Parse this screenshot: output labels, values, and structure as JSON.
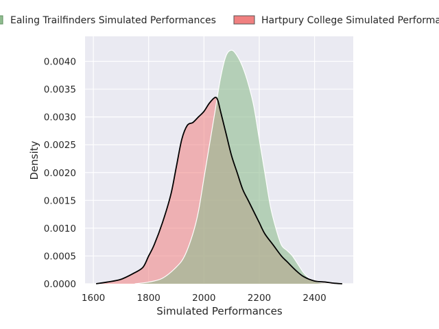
{
  "chart_data": {
    "type": "area",
    "title": "",
    "xlabel": "Simulated Performances",
    "ylabel": "Density",
    "xlim": [
      1570,
      2540
    ],
    "ylim": [
      0,
      0.00445
    ],
    "xticks": [
      1600,
      1800,
      2000,
      2200,
      2400
    ],
    "xtick_labels": [
      "1600",
      "1800",
      "2000",
      "2200",
      "2400"
    ],
    "yticks": [
      0,
      0.0005,
      0.001,
      0.0015,
      0.002,
      0.0025,
      0.003,
      0.0035,
      0.004
    ],
    "ytick_labels": [
      "0.0000",
      "0.0005",
      "0.0010",
      "0.0015",
      "0.0020",
      "0.0025",
      "0.0030",
      "0.0035",
      "0.0040"
    ],
    "grid": true,
    "legend_position": "top, above plot",
    "colors": {
      "background": "#eaeaf2",
      "grid": "#ffffff",
      "ealing_fill": "#8fbc8f",
      "hartpury_fill": "#f08080"
    },
    "series": [
      {
        "name": "Ealing Trailfinders Simulated Performances",
        "color": "#8fbc8f",
        "outline": "#ffffff",
        "x": [
          1750,
          1800,
          1850,
          1900,
          1930,
          1960,
          1980,
          2000,
          2020,
          2040,
          2060,
          2080,
          2100,
          2120,
          2140,
          2160,
          2180,
          2200,
          2220,
          2240,
          2260,
          2280,
          2300,
          2320,
          2340,
          2360,
          2380,
          2400,
          2420,
          2440,
          2460
        ],
        "density": [
          0.0,
          3e-05,
          0.0001,
          0.0003,
          0.0005,
          0.0009,
          0.0013,
          0.0019,
          0.0025,
          0.0031,
          0.0037,
          0.0041,
          0.0042,
          0.0041,
          0.0039,
          0.0036,
          0.0032,
          0.0026,
          0.002,
          0.0014,
          0.001,
          0.0007,
          0.0006,
          0.0005,
          0.00035,
          0.0002,
          0.0001,
          5e-05,
          2e-05,
          1e-05,
          0.0
        ]
      },
      {
        "name": "Hartpury College Simulated Performances",
        "color": "#f08080",
        "outline": "#000000",
        "x": [
          1610,
          1650,
          1700,
          1750,
          1780,
          1800,
          1820,
          1850,
          1880,
          1900,
          1920,
          1940,
          1960,
          1980,
          2000,
          2020,
          2040,
          2050,
          2060,
          2080,
          2100,
          2120,
          2140,
          2160,
          2180,
          2200,
          2220,
          2250,
          2280,
          2300,
          2330,
          2360,
          2400,
          2440,
          2470,
          2500
        ],
        "density": [
          0.0,
          3e-05,
          8e-05,
          0.0002,
          0.0003,
          0.0005,
          0.0007,
          0.0011,
          0.0016,
          0.0021,
          0.0026,
          0.00285,
          0.0029,
          0.003,
          0.0031,
          0.00325,
          0.00335,
          0.0033,
          0.0031,
          0.0027,
          0.0023,
          0.002,
          0.0017,
          0.0015,
          0.0013,
          0.0011,
          0.0009,
          0.0007,
          0.0005,
          0.0004,
          0.00025,
          0.00013,
          5e-05,
          3e-05,
          1e-05,
          0.0
        ]
      }
    ]
  }
}
